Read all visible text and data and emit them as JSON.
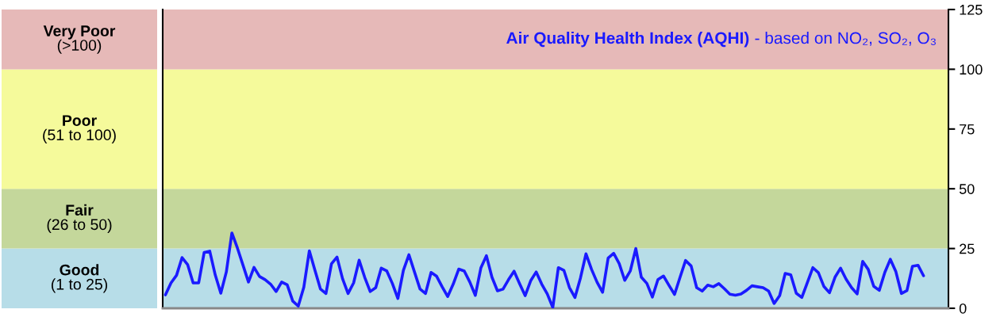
{
  "chart_data": {
    "type": "line",
    "title": "Air Quality Health Index (AQHI)",
    "subtitle": "- based on NO₂, SO₂, O₃",
    "categories": [
      null,
      null,
      null,
      null,
      null,
      null,
      null,
      null,
      null,
      null,
      null,
      null,
      null,
      null,
      null,
      null,
      null,
      null,
      null,
      null,
      null,
      null,
      null,
      null,
      null,
      null,
      null,
      null,
      null,
      null,
      null,
      null,
      null,
      null,
      null,
      null,
      null,
      null,
      null,
      null,
      null,
      null,
      null,
      null,
      null,
      null,
      null,
      null,
      null,
      null,
      null,
      null,
      null,
      null,
      null,
      null,
      null,
      null,
      null,
      null,
      null,
      null,
      null,
      null,
      null,
      null,
      null,
      null,
      null,
      null,
      null,
      null,
      null,
      null,
      null,
      null,
      null,
      null,
      null,
      null,
      null,
      null,
      null,
      null,
      null,
      null,
      null,
      null,
      null,
      null,
      null,
      null,
      null,
      null,
      null,
      null,
      null,
      null,
      null,
      null,
      null,
      null,
      null,
      null,
      null,
      null,
      null,
      null,
      null,
      null,
      null,
      null,
      null,
      null,
      null,
      null,
      null,
      null,
      null,
      null,
      null,
      null,
      null,
      null,
      null,
      null,
      null,
      null,
      null,
      null,
      null,
      null,
      null,
      null,
      null,
      null,
      null,
      null,
      null,
      null,
      null,
      null
    ],
    "series": [
      {
        "color": "#1a1aff",
        "values": [
          5.6,
          10.6,
          13.8,
          21.2,
          18.3,
          10.6,
          10.6,
          23.4,
          23.9,
          13.9,
          6.3,
          15.2,
          31.5,
          25.2,
          18.1,
          11,
          17.1,
          13.3,
          12,
          10.1,
          7,
          11,
          9.8,
          3,
          0.9,
          8.8,
          24,
          16,
          8.1,
          6.2,
          18.6,
          21.4,
          12.4,
          6.2,
          10.6,
          20.1,
          13,
          7,
          8.6,
          16.8,
          15.6,
          10.4,
          4.1,
          15.9,
          22.4,
          15.2,
          8.1,
          6.2,
          15,
          13.4,
          9,
          4.9,
          10.1,
          16.4,
          15.6,
          11,
          5.4,
          16.9,
          22,
          13,
          7.3,
          8,
          12,
          15.5,
          10.3,
          5.3,
          11.5,
          15.2,
          10.1,
          6,
          0.3,
          17,
          15.9,
          8.7,
          4.5,
          12.7,
          22.8,
          16.3,
          10.9,
          6.7,
          21,
          23,
          18.7,
          11.7,
          15.6,
          25,
          13,
          10.4,
          4.7,
          12,
          13.5,
          9.6,
          5.8,
          13,
          20,
          17.7,
          8.6,
          7.2,
          9.7,
          9,
          10.3,
          8.2,
          5.9,
          5.5,
          6,
          7.5,
          9.4,
          9,
          8.6,
          7.2,
          2,
          5.3,
          14.6,
          14,
          6.3,
          4.5,
          10.7,
          17,
          14.9,
          9.1,
          6.5,
          13,
          16.8,
          12.2,
          8.6,
          6,
          19.6,
          16.3,
          9.2,
          7.5,
          15,
          20.5,
          15.3,
          6.2,
          7.4,
          17.6,
          18,
          13.6,
          null,
          null,
          null,
          null
        ]
      }
    ],
    "ylim": [
      0,
      125
    ],
    "yticks": [
      0,
      25,
      50,
      75,
      100,
      125
    ],
    "bands": [
      {
        "axis": "y",
        "from": 0,
        "to": 25,
        "color": "#b7dde8"
      },
      {
        "axis": "y",
        "from": 25,
        "to": 50,
        "color": "#c4d79b"
      },
      {
        "axis": "y",
        "from": 50,
        "to": 100,
        "color": "#f5fa9b"
      },
      {
        "axis": "y",
        "from": 100,
        "to": 125,
        "color": "#e6b9b8"
      }
    ],
    "annotations": [
      "Good\n(1 to 25)",
      "Fair\n(26 to 50)",
      "Poor\n(51 to 100)",
      "Very Poor\n(>100)"
    ],
    "grid": false,
    "marker": "none",
    "line_style": "solid"
  }
}
